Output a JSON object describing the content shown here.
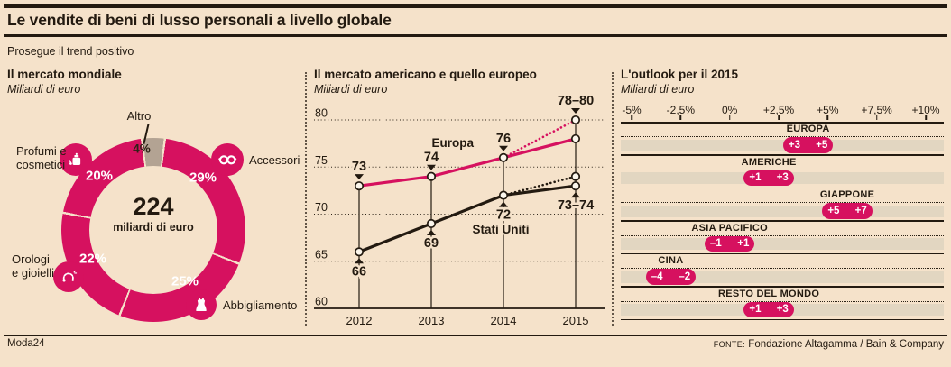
{
  "header": {
    "title": "Le vendite di beni di lusso personali a livello globale",
    "subtitle": "Prosegue il trend positivo"
  },
  "footer": {
    "brand": "Moda24",
    "source_label": "FONTE:",
    "source": "Fondazione Altagamma / Bain & Company"
  },
  "colors": {
    "magenta": "#d6115f",
    "altro_segment": "#b3a393",
    "background": "#f5e2ca",
    "band": "#e2d6c1",
    "ink": "#231a10"
  },
  "chart_data": [
    {
      "type": "pie",
      "panel": "left",
      "title": "Il mercato mondiale",
      "subtitle": "Miliardi di euro",
      "center_value": "224",
      "center_label": "miliardi di euro",
      "segments": [
        {
          "label": "Altro",
          "value": 4,
          "color": "#b3a393",
          "icon": null
        },
        {
          "label": "Accessori",
          "value": 29,
          "color": "#d6115f",
          "icon": "glasses-icon"
        },
        {
          "label": "Abbigliamento",
          "value": 25,
          "color": "#d6115f",
          "icon": "dress-icon"
        },
        {
          "label": "Orologi e gioielli",
          "value": 22,
          "color": "#d6115f",
          "icon": "bracelet-icon"
        },
        {
          "label": "Profumi e cosmetici",
          "value": 20,
          "color": "#d6115f",
          "icon": "perfume-icon"
        }
      ]
    },
    {
      "type": "line",
      "panel": "middle",
      "title": "Il mercato americano e quello europeo",
      "subtitle": "Miliardi di euro",
      "x": [
        "2012",
        "2013",
        "2014",
        "2015"
      ],
      "ylim": [
        60,
        80
      ],
      "yticks": [
        60,
        65,
        70,
        75,
        80
      ],
      "series": [
        {
          "name": "Europa",
          "color": "#d6115f",
          "values": [
            73,
            74,
            76
          ],
          "forecast_2015_range": [
            78,
            80
          ],
          "label_2015": "78–80"
        },
        {
          "name": "Stati Uniti",
          "color": "#231a10",
          "values": [
            66,
            69,
            72
          ],
          "forecast_2015_range": [
            73,
            74
          ],
          "label_2015": "73–74"
        }
      ]
    },
    {
      "type": "range-bar",
      "panel": "right",
      "title": "L'outlook per il 2015",
      "subtitle": "Miliardi di euro",
      "axis_ticks": [
        "-5%",
        "-2,5%",
        "0%",
        "+2,5%",
        "+5%",
        "+7,5%",
        "+10%"
      ],
      "axis_tick_values": [
        -5,
        -2.5,
        0,
        2.5,
        5,
        7.5,
        10
      ],
      "axis_range": [
        -5,
        10
      ],
      "rows": [
        {
          "label": "EUROPA",
          "min": 3,
          "max": 5,
          "min_label": "+3",
          "max_label": "+5"
        },
        {
          "label": "AMERICHE",
          "min": 1,
          "max": 3,
          "min_label": "+1",
          "max_label": "+3"
        },
        {
          "label": "GIAPPONE",
          "min": 5,
          "max": 7,
          "min_label": "+5",
          "max_label": "+7"
        },
        {
          "label": "ASIA PACIFICO",
          "min": -1,
          "max": 1,
          "min_label": "–1",
          "max_label": "+1"
        },
        {
          "label": "CINA",
          "min": -4,
          "max": -2,
          "min_label": "–4",
          "max_label": "–2"
        },
        {
          "label": "RESTO DEL MONDO",
          "min": 1,
          "max": 3,
          "min_label": "+1",
          "max_label": "+3"
        }
      ]
    }
  ]
}
